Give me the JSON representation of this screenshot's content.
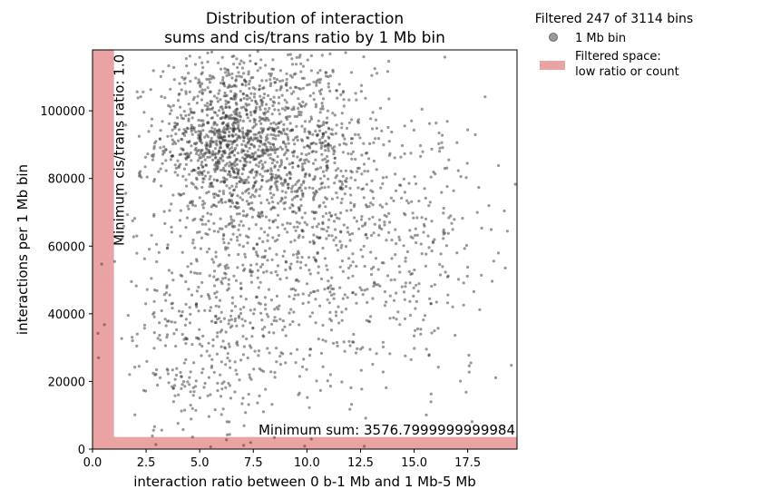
{
  "chart_data": {
    "type": "scatter",
    "title_line1": "Distribution of interaction",
    "title_line2": "sums and cis/trans ratio by 1 Mb bin",
    "xlabel": "interaction ratio between 0 b-1 Mb and 1 Mb-5 Mb",
    "ylabel": "interactions per 1 Mb bin",
    "xlim": [
      0,
      19.8
    ],
    "ylim": [
      0,
      118000
    ],
    "xticks": [
      0.0,
      2.5,
      5.0,
      7.5,
      10.0,
      12.5,
      15.0,
      17.5
    ],
    "xtick_labels": [
      "0.0",
      "2.5",
      "5.0",
      "7.5",
      "10.0",
      "12.5",
      "15.0",
      "17.5"
    ],
    "yticks": [
      0,
      20000,
      40000,
      60000,
      80000,
      100000
    ],
    "ytick_labels": [
      "0",
      "20000",
      "40000",
      "60000",
      "80000",
      "100000"
    ],
    "legend": {
      "title": "Filtered 247 of 3114 bins",
      "entries": [
        "1 Mb bin",
        "Filtered space:\n low ratio or count"
      ]
    },
    "legend_entry_scatter": "1 Mb bin",
    "legend_entry_filtered_line1": "Filtered space:",
    "legend_entry_filtered_line2": " low ratio or count",
    "min_ratio": 1.0,
    "min_sum": 3576.7999999999984,
    "min_ratio_label": "Minimum cis/trans ratio: 1.0",
    "min_sum_label": "Minimum sum: 3576.7999999999984",
    "total_bins": 3114,
    "filtered_bins": 247,
    "point_color": "#333333",
    "point_alpha": 0.5,
    "filter_color": "#eaa3a3",
    "grid": false,
    "legend_placement": "outside upper right",
    "clusters": [
      {
        "cx": 6.2,
        "cy": 92000,
        "sx": 1.6,
        "sy": 12000,
        "n": 900
      },
      {
        "cx": 9.5,
        "cy": 90000,
        "sx": 2.2,
        "sy": 16000,
        "n": 700
      },
      {
        "cx": 8.0,
        "cy": 55000,
        "sx": 3.2,
        "sy": 22000,
        "n": 550
      },
      {
        "cx": 14.5,
        "cy": 60000,
        "sx": 2.8,
        "sy": 20000,
        "n": 350
      },
      {
        "cx": 5.5,
        "cy": 30000,
        "sx": 2.5,
        "sy": 14000,
        "n": 250
      }
    ]
  }
}
